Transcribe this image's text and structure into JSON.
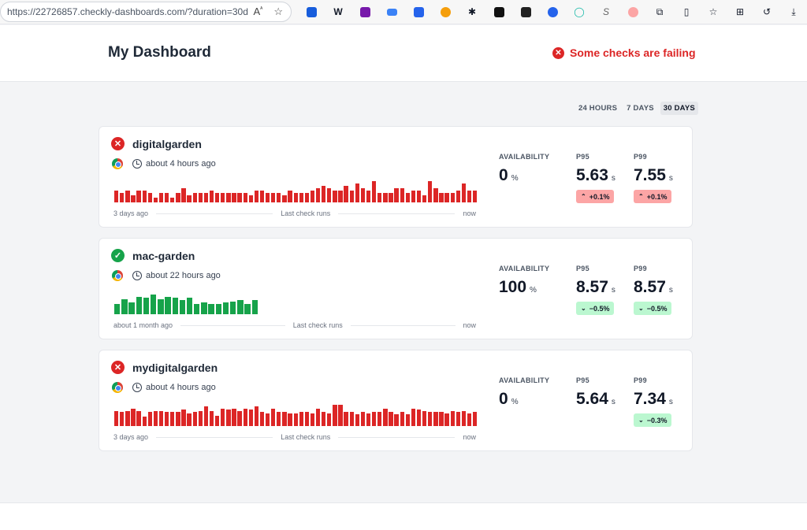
{
  "browser": {
    "url": "https://22726857.checkly-dashboards.com/?duration=30d"
  },
  "header": {
    "title": "My Dashboard",
    "status_text": "Some checks are failing"
  },
  "duration_tabs": [
    "24 HOURS",
    "7 DAYS",
    "30 DAYS"
  ],
  "active_tab": "30 DAYS",
  "colors": {
    "fail": "#dc2626",
    "pass": "#16a34a",
    "pill_up": "#fca5a5",
    "pill_down": "#bbf7d0"
  },
  "checks": [
    {
      "name": "digitalgarden",
      "status": "fail",
      "last_run": "about 4 hours ago",
      "axis_start": "3 days ago",
      "axis_mid": "Last check runs",
      "axis_end": "now",
      "availability_label": "AVAILABILITY",
      "availability": "0",
      "availability_unit": "%",
      "p95_label": "P95",
      "p95": "5.63",
      "p95_unit": "s",
      "p95_change": "+0.1%",
      "p95_dir": "up",
      "p99_label": "P99",
      "p99": "7.55",
      "p99_unit": "s",
      "p99_change": "+0.1%",
      "p99_dir": "up",
      "runs": [
        0.5,
        0.4,
        0.5,
        0.3,
        0.5,
        0.5,
        0.4,
        0.2,
        0.4,
        0.4,
        0.2,
        0.4,
        0.6,
        0.3,
        0.4,
        0.4,
        0.4,
        0.5,
        0.4,
        0.4,
        0.4,
        0.4,
        0.4,
        0.4,
        0.3,
        0.5,
        0.5,
        0.4,
        0.4,
        0.4,
        0.3,
        0.5,
        0.4,
        0.4,
        0.4,
        0.5,
        0.6,
        0.7,
        0.6,
        0.5,
        0.5,
        0.7,
        0.5,
        0.8,
        0.6,
        0.5,
        0.9,
        0.4,
        0.4,
        0.4,
        0.6,
        0.6,
        0.4,
        0.5,
        0.5,
        0.3,
        0.9,
        0.6,
        0.4,
        0.4,
        0.4,
        0.5,
        0.8,
        0.5,
        0.5
      ]
    },
    {
      "name": "mac-garden",
      "status": "pass",
      "last_run": "about 22 hours ago",
      "axis_start": "about 1 month ago",
      "axis_mid": "Last check runs",
      "axis_end": "now",
      "availability_label": "AVAILABILITY",
      "availability": "100",
      "availability_unit": "%",
      "p95_label": "P95",
      "p95": "8.57",
      "p95_unit": "s",
      "p95_change": "−0.5%",
      "p95_dir": "down",
      "p99_label": "P99",
      "p99": "8.57",
      "p99_unit": "s",
      "p99_change": "−0.5%",
      "p99_dir": "down",
      "runs": [
        0.45,
        0.65,
        0.5,
        0.75,
        0.7,
        0.85,
        0.65,
        0.75,
        0.7,
        0.6,
        0.7,
        0.45,
        0.5,
        0.45,
        0.45,
        0.5,
        0.55,
        0.6,
        0.45,
        0.6
      ]
    },
    {
      "name": "mydigitalgarden",
      "status": "fail",
      "last_run": "about 4 hours ago",
      "axis_start": "3 days ago",
      "axis_mid": "Last check runs",
      "axis_end": "now",
      "availability_label": "AVAILABILITY",
      "availability": "0",
      "availability_unit": "%",
      "p95_label": "P95",
      "p95": "5.64",
      "p95_unit": "s",
      "p95_change": "",
      "p95_dir": "",
      "p99_label": "P99",
      "p99": "7.34",
      "p99_unit": "s",
      "p99_change": "−0.3%",
      "p99_dir": "down",
      "runs": [
        0.65,
        0.6,
        0.65,
        0.75,
        0.65,
        0.4,
        0.6,
        0.65,
        0.65,
        0.6,
        0.6,
        0.6,
        0.7,
        0.55,
        0.6,
        0.65,
        0.85,
        0.65,
        0.45,
        0.75,
        0.7,
        0.75,
        0.65,
        0.75,
        0.7,
        0.85,
        0.6,
        0.55,
        0.75,
        0.6,
        0.6,
        0.55,
        0.55,
        0.6,
        0.6,
        0.55,
        0.75,
        0.6,
        0.55,
        0.9,
        0.9,
        0.6,
        0.6,
        0.5,
        0.6,
        0.55,
        0.6,
        0.6,
        0.75,
        0.6,
        0.5,
        0.6,
        0.5,
        0.75,
        0.7,
        0.65,
        0.6,
        0.6,
        0.6,
        0.55,
        0.65,
        0.6,
        0.65,
        0.55,
        0.6
      ]
    }
  ]
}
